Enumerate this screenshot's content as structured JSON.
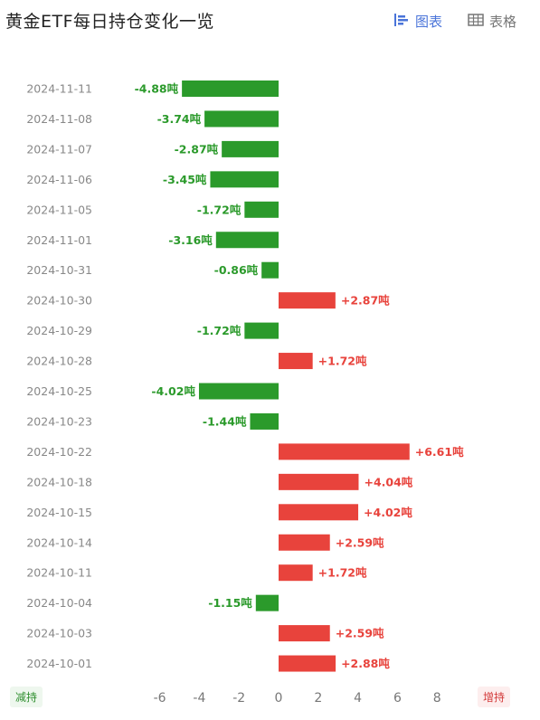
{
  "title": "黄金ETF每日持仓变化一览",
  "view_toggle": {
    "chart_label": "图表",
    "table_label": "表格",
    "chart_icon": "bar-chart-icon",
    "table_icon": "table-grid-icon",
    "active_color": "#4a74d9"
  },
  "legend": {
    "decrease_label": "减持",
    "increase_label": "增持",
    "decrease_color": "#2b9a2b",
    "increase_color": "#e8433c"
  },
  "chart_data": {
    "type": "bar",
    "orientation": "horizontal",
    "unit": "吨",
    "categories": [
      "2024-11-11",
      "2024-11-08",
      "2024-11-07",
      "2024-11-06",
      "2024-11-05",
      "2024-11-01",
      "2024-10-31",
      "2024-10-30",
      "2024-10-29",
      "2024-10-28",
      "2024-10-25",
      "2024-10-23",
      "2024-10-22",
      "2024-10-18",
      "2024-10-15",
      "2024-10-14",
      "2024-10-11",
      "2024-10-04",
      "2024-10-03",
      "2024-10-01"
    ],
    "values": [
      -4.88,
      -3.74,
      -2.87,
      -3.45,
      -1.72,
      -3.16,
      -0.86,
      2.87,
      -1.72,
      1.72,
      -4.02,
      -1.44,
      6.61,
      4.04,
      4.02,
      2.59,
      1.72,
      -1.15,
      2.59,
      2.88
    ],
    "labels": [
      "-4.88吨",
      "-3.74吨",
      "-2.87吨",
      "-3.45吨",
      "-1.72吨",
      "-3.16吨",
      "-0.86吨",
      "+2.87吨",
      "-1.72吨",
      "+1.72吨",
      "-4.02吨",
      "-1.44吨",
      "+6.61吨",
      "+4.04吨",
      "+4.02吨",
      "+2.59吨",
      "+1.72吨",
      "-1.15吨",
      "+2.59吨",
      "+2.88吨"
    ],
    "xlim": [
      -6,
      8
    ],
    "xticks": [
      "-6",
      "-4",
      "-2",
      "0",
      "2",
      "4",
      "6",
      "8"
    ],
    "positive_color": "#e8433c",
    "negative_color": "#2b9a2b",
    "grid": false
  }
}
